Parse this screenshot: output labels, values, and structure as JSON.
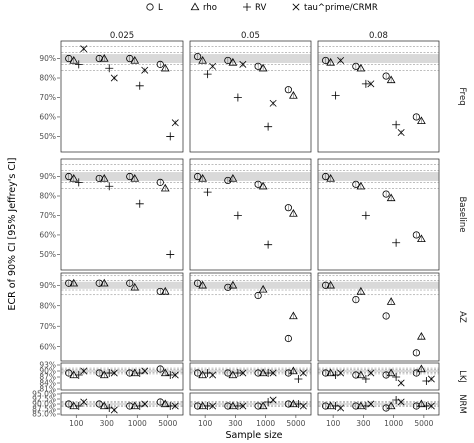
{
  "chart_data": {
    "type": "scatter",
    "xlabel": "Sample size",
    "ylabel": "ECR of 90% CI [95% Jeffrey's CI]",
    "x_categories": [
      "100",
      "300",
      "1000",
      "5000"
    ],
    "columns": [
      "0.025",
      "0.05",
      "0.08"
    ],
    "rows": [
      "Freq",
      "Baseline",
      "AZ",
      "LKJ",
      "NRM"
    ],
    "nominal": 90,
    "legend": {
      "position": "top",
      "entries": [
        {
          "key": "L",
          "label": "L",
          "marker": "circle"
        },
        {
          "key": "rho",
          "label": "rho",
          "marker": "triangle"
        },
        {
          "key": "RV",
          "label": "RV",
          "marker": "plus"
        },
        {
          "key": "tau",
          "label": "tau^prime/CRMR",
          "marker": "cross"
        }
      ]
    },
    "panel_ticks": {
      "Freq": {
        "range": [
          42,
          99
        ],
        "ticks": [
          50,
          60,
          70,
          80,
          90
        ],
        "labels": [
          "50%",
          "60%",
          "70%",
          "80%",
          "90%"
        ]
      },
      "Baseline": {
        "range": [
          42,
          99
        ],
        "ticks": [
          50,
          60,
          70,
          80,
          90
        ],
        "labels": [
          "50%",
          "60%",
          "70%",
          "80%",
          "90%"
        ]
      },
      "AZ": {
        "range": [
          53,
          96
        ],
        "ticks": [
          60,
          70,
          80,
          90
        ],
        "labels": [
          "60%",
          "70%",
          "80%",
          "90%"
        ]
      },
      "LKJ": {
        "range": [
          80.5,
          94
        ],
        "ticks": [
          81,
          84,
          87,
          90,
          93
        ],
        "labels": [
          "81%",
          "84%",
          "87%",
          "90%",
          "93%"
        ]
      },
      "NRM": {
        "range": [
          84.5,
          95.5
        ],
        "ticks": [
          85,
          87.5,
          90,
          92.5,
          95
        ],
        "labels": [
          "85.0%",
          "87.5%",
          "90.0%",
          "92.5%",
          "95.0%"
        ]
      }
    },
    "series_order": [
      "L",
      "rho",
      "RV",
      "tau"
    ],
    "data": {
      "Freq": {
        "0.025": {
          "L": [
            90,
            90,
            90,
            87
          ],
          "rho": [
            89,
            90,
            89,
            85
          ],
          "RV": [
            87,
            85,
            76,
            50
          ],
          "tau": [
            95,
            80,
            84,
            57
          ]
        },
        "0.05": {
          "L": [
            91,
            89,
            86,
            74
          ],
          "rho": [
            89,
            88,
            85,
            71
          ],
          "RV": [
            82,
            70,
            55,
            null
          ],
          "tau": [
            86,
            87,
            67,
            null
          ]
        },
        "0.08": {
          "L": [
            89,
            86,
            81,
            60
          ],
          "rho": [
            88,
            85,
            79,
            58
          ],
          "RV": [
            71,
            77,
            56,
            null
          ],
          "tau": [
            89,
            77,
            52,
            null
          ]
        }
      },
      "Baseline": {
        "0.025": {
          "L": [
            90,
            89,
            90,
            87
          ],
          "rho": [
            89,
            89,
            89,
            84
          ],
          "RV": [
            87,
            85,
            76,
            50
          ],
          "tau": [
            null,
            null,
            null,
            null
          ]
        },
        "0.05": {
          "L": [
            90,
            88,
            86,
            74
          ],
          "rho": [
            89,
            89,
            85,
            71
          ],
          "RV": [
            82,
            70,
            55,
            null
          ],
          "tau": [
            null,
            null,
            null,
            null
          ]
        },
        "0.08": {
          "L": [
            90,
            86,
            81,
            60
          ],
          "rho": [
            89,
            85,
            79,
            58
          ],
          "RV": [
            null,
            70,
            56,
            null
          ],
          "tau": [
            null,
            null,
            null,
            null
          ]
        }
      },
      "AZ": {
        "0.025": {
          "L": [
            91,
            91,
            91,
            87
          ],
          "rho": [
            91,
            91,
            89,
            87
          ],
          "RV": [
            null,
            null,
            null,
            null
          ],
          "tau": [
            null,
            null,
            null,
            null
          ]
        },
        "0.05": {
          "L": [
            91,
            89,
            85,
            64
          ],
          "rho": [
            90,
            90,
            88,
            75
          ],
          "RV": [
            null,
            null,
            null,
            null
          ],
          "tau": [
            null,
            null,
            null,
            null
          ]
        },
        "0.08": {
          "L": [
            90,
            83,
            75,
            57
          ],
          "rho": [
            90,
            87,
            82,
            65
          ],
          "RV": [
            null,
            null,
            null,
            null
          ],
          "tau": [
            null,
            null,
            null,
            null
          ]
        }
      },
      "LKJ": {
        "0.025": {
          "L": [
            89,
            89,
            89,
            91
          ],
          "rho": [
            88,
            88,
            89,
            89
          ],
          "RV": [
            88,
            89,
            89,
            88
          ],
          "tau": [
            90,
            89,
            90,
            88
          ]
        },
        "0.05": {
          "L": [
            89,
            89,
            89,
            89
          ],
          "rho": [
            88,
            88,
            89,
            90
          ],
          "RV": [
            89,
            89,
            89,
            86
          ],
          "tau": [
            88,
            89,
            89,
            89
          ]
        },
        "0.08": {
          "L": [
            89,
            88,
            88,
            89
          ],
          "rho": [
            89,
            88,
            89,
            91
          ],
          "RV": [
            88,
            86,
            87,
            85
          ],
          "tau": [
            89,
            89,
            84,
            86
          ]
        }
      },
      "NRM": {
        "0.025": {
          "L": [
            90,
            90,
            89,
            91
          ],
          "rho": [
            89,
            89,
            89,
            90
          ],
          "RV": [
            89,
            88,
            89,
            89
          ],
          "tau": [
            91,
            87,
            90,
            89
          ]
        },
        "0.05": {
          "L": [
            89,
            89,
            89,
            90
          ],
          "rho": [
            89,
            89,
            89,
            90
          ],
          "RV": [
            89,
            89,
            91,
            90
          ],
          "tau": [
            89,
            89,
            92,
            89
          ]
        },
        "0.08": {
          "L": [
            89,
            89,
            88,
            89
          ],
          "rho": [
            89,
            89,
            89,
            90
          ],
          "RV": [
            89,
            89,
            92,
            89
          ],
          "tau": [
            88,
            90,
            91,
            89
          ]
        }
      }
    },
    "colors": {
      "panel_bg": "#ffffff",
      "strip_bg": "#d9d9d9",
      "band": "#d9d9d9",
      "dashed": "#7f7f7f",
      "grid": "#ebebeb",
      "marker": "#000000"
    }
  }
}
